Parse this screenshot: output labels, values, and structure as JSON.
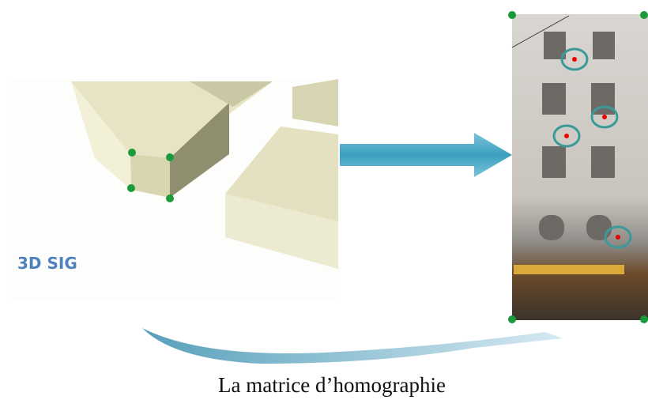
{
  "panel_label": "3D SIG",
  "caption": "La matrice d’homographie"
}
